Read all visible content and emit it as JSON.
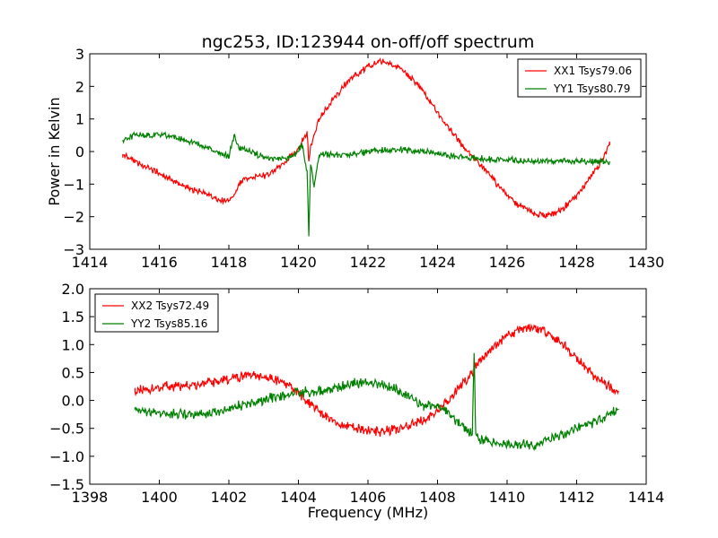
{
  "chart_data": [
    {
      "type": "line",
      "title": "ngc253, ID:123944 on-off/off spectrum",
      "xlabel": "",
      "ylabel": "Power in Kelvin",
      "xlim": [
        1414,
        1430
      ],
      "ylim": [
        -3,
        3
      ],
      "xticks": [
        "1414",
        "1416",
        "1418",
        "1420",
        "1422",
        "1424",
        "1426",
        "1428",
        "1430"
      ],
      "yticks": [
        "−3",
        "−2",
        "−1",
        "0",
        "1",
        "2",
        "3"
      ],
      "legend_position": "upper right",
      "series": [
        {
          "name": "XX1 Tsys79.06",
          "color": "#ff0000",
          "x": [
            1414.95,
            1415.3,
            1415.7,
            1416.1,
            1416.5,
            1416.9,
            1417.3,
            1417.7,
            1418.0,
            1418.2,
            1418.4,
            1418.7,
            1419.0,
            1419.3,
            1419.6,
            1419.9,
            1420.1,
            1420.25,
            1420.3,
            1420.35,
            1420.45,
            1420.6,
            1421.0,
            1421.5,
            1422.0,
            1422.3,
            1422.6,
            1423.0,
            1423.4,
            1423.8,
            1424.2,
            1424.6,
            1425.0,
            1425.4,
            1425.8,
            1426.2,
            1426.6,
            1426.9,
            1427.2,
            1427.6,
            1428.0,
            1428.4,
            1428.7,
            1428.95
          ],
          "y": [
            -0.1,
            -0.3,
            -0.5,
            -0.75,
            -0.95,
            -1.15,
            -1.3,
            -1.45,
            -1.5,
            -1.25,
            -0.85,
            -0.8,
            -0.75,
            -0.6,
            -0.35,
            -0.05,
            0.3,
            0.55,
            -0.3,
            0.2,
            0.5,
            1.0,
            1.6,
            2.25,
            2.6,
            2.75,
            2.7,
            2.5,
            2.1,
            1.5,
            0.9,
            0.35,
            -0.15,
            -0.6,
            -1.1,
            -1.55,
            -1.8,
            -1.95,
            -1.95,
            -1.75,
            -1.35,
            -0.8,
            -0.3,
            0.2
          ]
        },
        {
          "name": "YY1 Tsys80.79",
          "color": "#008000",
          "x": [
            1414.95,
            1415.3,
            1415.7,
            1416.1,
            1416.5,
            1416.9,
            1417.3,
            1417.7,
            1418.0,
            1418.15,
            1418.3,
            1418.6,
            1419.0,
            1419.4,
            1419.7,
            1420.0,
            1420.1,
            1420.25,
            1420.3,
            1420.35,
            1420.45,
            1420.6,
            1421.0,
            1421.5,
            1422.0,
            1422.5,
            1423.0,
            1423.5,
            1424.0,
            1424.5,
            1425.0,
            1425.5,
            1426.0,
            1426.5,
            1427.0,
            1427.5,
            1428.0,
            1428.5,
            1428.95
          ],
          "y": [
            0.35,
            0.5,
            0.5,
            0.5,
            0.4,
            0.3,
            0.15,
            0.0,
            -0.15,
            0.45,
            0.1,
            0.0,
            -0.15,
            -0.25,
            -0.2,
            0.0,
            0.25,
            -0.6,
            -2.6,
            -0.4,
            -1.1,
            -0.1,
            -0.1,
            -0.1,
            0.0,
            0.05,
            0.05,
            0.0,
            -0.05,
            -0.15,
            -0.2,
            -0.25,
            -0.25,
            -0.3,
            -0.3,
            -0.3,
            -0.3,
            -0.3,
            -0.3
          ]
        }
      ]
    },
    {
      "type": "line",
      "title": "",
      "xlabel": "Frequency (MHz)",
      "ylabel": "",
      "xlim": [
        1398,
        1414
      ],
      "ylim": [
        -1.5,
        2.0
      ],
      "xticks": [
        "1398",
        "1400",
        "1402",
        "1404",
        "1406",
        "1408",
        "1410",
        "1412",
        "1414"
      ],
      "yticks": [
        "−1.5",
        "−1.0",
        "−0.5",
        "0.0",
        "0.5",
        "1.0",
        "1.5",
        "2.0"
      ],
      "legend_position": "upper left",
      "series": [
        {
          "name": "XX2 Tsys72.49",
          "color": "#ff0000",
          "x": [
            1399.3,
            1399.7,
            1400.2,
            1400.7,
            1401.2,
            1401.7,
            1402.2,
            1402.7,
            1403.2,
            1403.6,
            1404.0,
            1404.4,
            1404.8,
            1405.2,
            1405.6,
            1406.0,
            1406.4,
            1406.8,
            1407.2,
            1407.6,
            1408.0,
            1408.4,
            1408.8,
            1409.2,
            1409.6,
            1410.0,
            1410.4,
            1410.8,
            1411.2,
            1411.6,
            1412.0,
            1412.4,
            1412.8,
            1413.2
          ],
          "y": [
            0.15,
            0.2,
            0.25,
            0.25,
            0.3,
            0.35,
            0.4,
            0.45,
            0.4,
            0.3,
            0.15,
            -0.1,
            -0.3,
            -0.45,
            -0.5,
            -0.55,
            -0.55,
            -0.5,
            -0.45,
            -0.35,
            -0.2,
            0.05,
            0.35,
            0.7,
            0.95,
            1.15,
            1.3,
            1.3,
            1.2,
            1.0,
            0.75,
            0.5,
            0.3,
            0.15
          ]
        },
        {
          "name": "YY2 Tsys85.16",
          "color": "#008000",
          "x": [
            1399.3,
            1399.7,
            1400.2,
            1400.7,
            1401.2,
            1401.7,
            1402.2,
            1402.7,
            1403.2,
            1403.6,
            1404.0,
            1404.4,
            1404.8,
            1405.2,
            1405.6,
            1406.0,
            1406.4,
            1406.8,
            1407.2,
            1407.6,
            1408.0,
            1408.4,
            1408.8,
            1409.0,
            1409.05,
            1409.1,
            1409.2,
            1409.6,
            1410.0,
            1410.4,
            1410.8,
            1411.2,
            1411.6,
            1412.0,
            1412.4,
            1412.8,
            1413.2
          ],
          "y": [
            -0.15,
            -0.2,
            -0.25,
            -0.25,
            -0.25,
            -0.2,
            -0.1,
            -0.05,
            0.05,
            0.1,
            0.15,
            0.15,
            0.2,
            0.25,
            0.3,
            0.3,
            0.3,
            0.2,
            0.05,
            -0.1,
            -0.1,
            -0.3,
            -0.5,
            -0.6,
            0.85,
            -0.6,
            -0.7,
            -0.75,
            -0.8,
            -0.8,
            -0.8,
            -0.7,
            -0.6,
            -0.5,
            -0.4,
            -0.3,
            -0.15
          ]
        }
      ]
    }
  ]
}
